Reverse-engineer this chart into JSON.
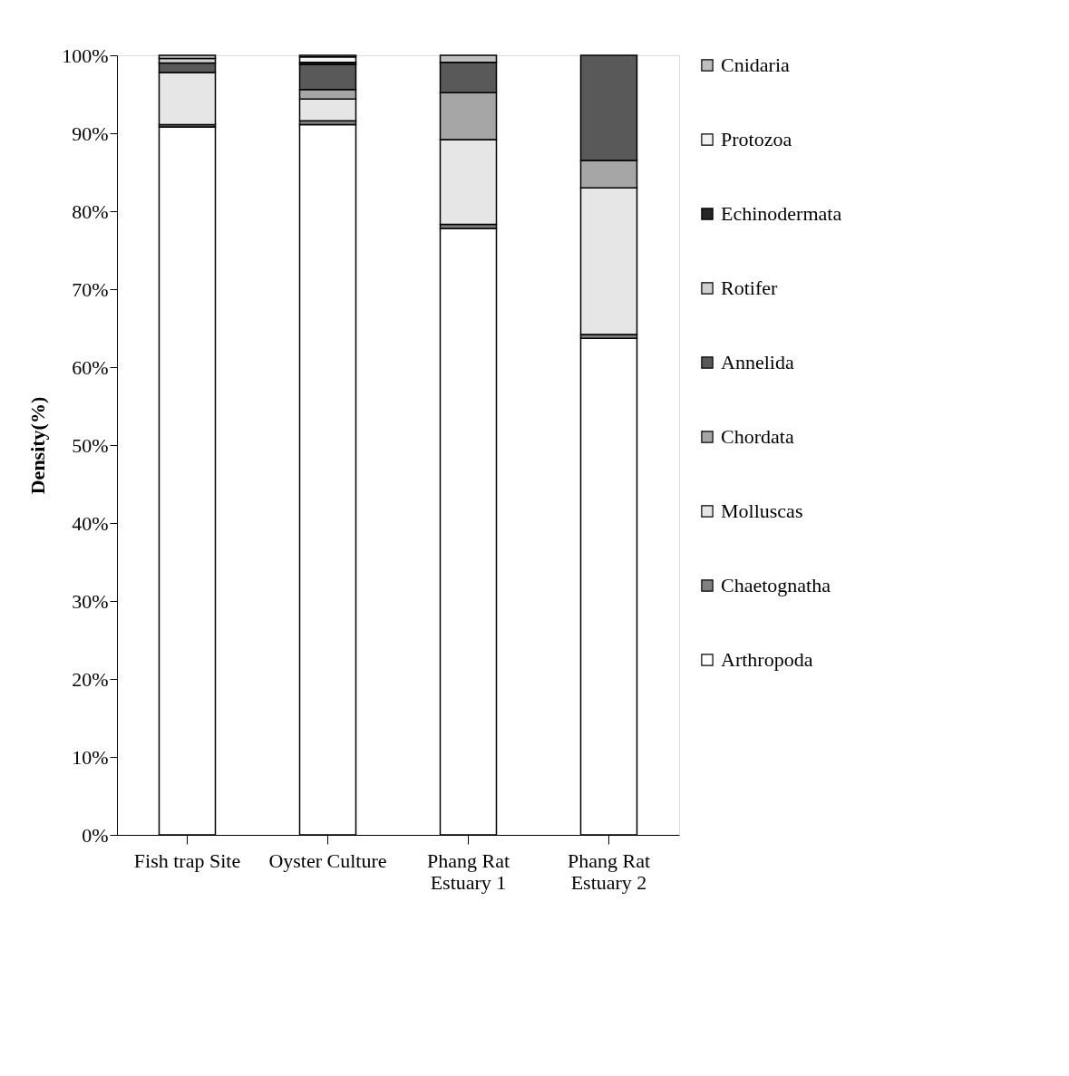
{
  "chart_data": {
    "type": "bar",
    "stacked": true,
    "ylabel": "Density(%)",
    "categories": [
      "Fish trap Site",
      "Oyster Culture",
      "Phang Rat\nEstuary  1",
      "Phang Rat\nEstuary 2"
    ],
    "series": [
      {
        "name": "Arthropoda",
        "color": "#ffffff",
        "values": [
          90.8,
          91.1,
          77.8,
          63.7
        ]
      },
      {
        "name": "Chaetognatha",
        "color": "#808080",
        "values": [
          0.3,
          0.5,
          0.5,
          0.5
        ]
      },
      {
        "name": "Molluscas",
        "color": "#e6e6e6",
        "values": [
          6.7,
          2.8,
          10.9,
          18.8
        ]
      },
      {
        "name": "Chordata",
        "color": "#a6a6a6",
        "values": [
          0,
          1.2,
          6.0,
          3.5
        ]
      },
      {
        "name": "Annelida",
        "color": "#595959",
        "values": [
          1.2,
          3.2,
          3.9,
          13.5
        ]
      },
      {
        "name": "Rotifer",
        "color": "#d0d0d0",
        "values": [
          0.6,
          0,
          0,
          0
        ]
      },
      {
        "name": "Echinodermata",
        "color": "#262626",
        "values": [
          null,
          0.3,
          null,
          0
        ]
      },
      {
        "name": "Protozoa",
        "color": "#f2f2f2",
        "values": [
          0,
          0.7,
          0,
          0
        ]
      },
      {
        "name": "Cnidaria",
        "color": "#bfbfbf",
        "values": [
          0.4,
          0.2,
          0.9,
          0
        ]
      }
    ],
    "ylim": [
      0,
      100
    ],
    "yticks": [
      {
        "value": 0,
        "label": "0%"
      },
      {
        "value": 10,
        "label": "10%"
      },
      {
        "value": 20,
        "label": "20%"
      },
      {
        "value": 30,
        "label": "30%"
      },
      {
        "value": 40,
        "label": "40%"
      },
      {
        "value": 50,
        "label": "50%"
      },
      {
        "value": 60,
        "label": "60%"
      },
      {
        "value": 70,
        "label": "70%"
      },
      {
        "value": 80,
        "label": "80%"
      },
      {
        "value": 90,
        "label": "90%"
      },
      {
        "value": 100,
        "label": "100%"
      }
    ],
    "grid": false,
    "legend": "right"
  }
}
